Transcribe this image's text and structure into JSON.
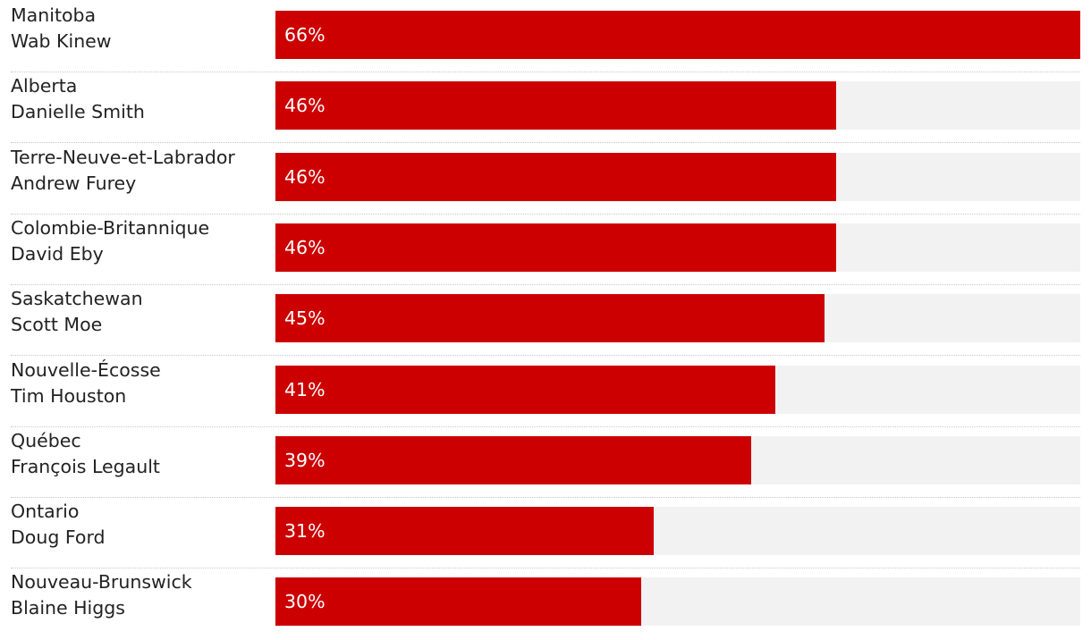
{
  "chart_data": {
    "type": "bar",
    "orientation": "horizontal",
    "categories": [
      "Manitoba",
      "Alberta",
      "Terre-Neuve-et-Labrador",
      "Colombie-Britannique",
      "Saskatchewan",
      "Nouvelle-Écosse",
      "Québec",
      "Ontario",
      "Nouveau-Brunswick"
    ],
    "leaders": [
      "Wab Kinew",
      "Danielle Smith",
      "Andrew Furey",
      "David Eby",
      "Scott Moe",
      "Tim Houston",
      "François Legault",
      "Doug Ford",
      "Blaine Higgs"
    ],
    "values": [
      66,
      46,
      46,
      46,
      45,
      41,
      39,
      31,
      30
    ],
    "value_labels": [
      "66%",
      "46%",
      "46%",
      "46%",
      "45%",
      "41%",
      "39%",
      "31%",
      "30%"
    ],
    "unit": "%",
    "xlim": [
      0,
      66
    ],
    "grid": false,
    "legend": "none",
    "colors": {
      "bar": "#cc0000",
      "track": "#f2f2f2",
      "value_text": "#ffffff",
      "label_text": "#222222",
      "divider": "#c8c8c8"
    }
  }
}
